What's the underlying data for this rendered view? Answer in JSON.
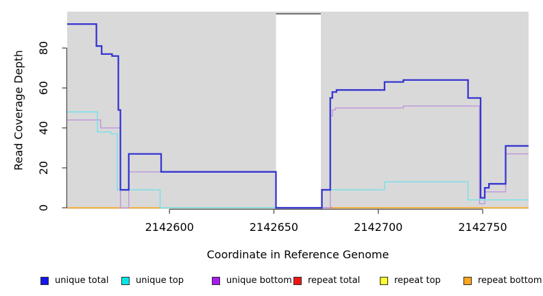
{
  "chart_data": {
    "type": "line",
    "variant": "step-coverage",
    "title": "",
    "xlabel": "Coordinate in Reference Genome",
    "ylabel": "Read Coverage Depth",
    "xlim": [
      2142551,
      2142772
    ],
    "ylim": [
      0,
      97
    ],
    "x_ticks": [
      2142600,
      2142650,
      2142700,
      2142750
    ],
    "y_ticks": [
      0,
      20,
      40,
      60,
      80
    ],
    "grid": false,
    "legend_position": "bottom",
    "panel_background": "#D9D9D9",
    "axis_color": "#4D4D4D",
    "no_data_gap_x": [
      2142651,
      2142672.5
    ],
    "series": [
      {
        "name": "unique total",
        "legend_color": "#1515EF",
        "line_color": "#3535D0",
        "line_width": 2.3,
        "steps": [
          [
            2142551,
            92
          ],
          [
            2142565,
            81
          ],
          [
            2142567.5,
            77
          ],
          [
            2142572.5,
            76
          ],
          [
            2142575.5,
            49
          ],
          [
            2142576.5,
            9
          ],
          [
            2142580.5,
            27
          ],
          [
            2142596,
            18
          ],
          [
            2142651,
            0
          ],
          [
            2142673,
            9
          ],
          [
            2142677,
            55
          ],
          [
            2142678,
            58
          ],
          [
            2142680,
            59
          ],
          [
            2142703,
            63
          ],
          [
            2142712,
            64
          ],
          [
            2142743,
            55
          ],
          [
            2142749,
            5
          ],
          [
            2142751,
            10
          ],
          [
            2142753,
            12
          ],
          [
            2142761,
            31
          ],
          [
            2142772,
            31
          ]
        ]
      },
      {
        "name": "unique top",
        "legend_color": "#00E8E8",
        "line_color": "#72E2EC",
        "line_width": 1.4,
        "steps": [
          [
            2142551,
            48
          ],
          [
            2142565.5,
            38
          ],
          [
            2142572,
            37
          ],
          [
            2142575,
            9
          ],
          [
            2142595.5,
            0
          ],
          [
            2142673,
            9
          ],
          [
            2142703,
            13
          ],
          [
            2142743,
            4
          ],
          [
            2142772,
            4
          ]
        ]
      },
      {
        "name": "unique bottom",
        "legend_color": "#AB1BEF",
        "line_color": "#BD95DC",
        "line_width": 1.4,
        "steps": [
          [
            2142551,
            44
          ],
          [
            2142567,
            40
          ],
          [
            2142576.5,
            0
          ],
          [
            2142580.5,
            18
          ],
          [
            2142651,
            0
          ],
          [
            2142677,
            46
          ],
          [
            2142678,
            49
          ],
          [
            2142679.5,
            50
          ],
          [
            2142712,
            51
          ],
          [
            2142748.5,
            2
          ],
          [
            2142751,
            8
          ],
          [
            2142761,
            27
          ],
          [
            2142772,
            27
          ]
        ]
      },
      {
        "name": "repeat total",
        "legend_color": "#EF1515",
        "line_color": "#DC6464",
        "line_width": 1.5,
        "steps": [
          [
            2142551,
            0
          ],
          [
            2142772,
            0
          ]
        ]
      },
      {
        "name": "repeat top",
        "legend_color": "#FFFF2E",
        "line_color": "#EEEE44",
        "line_width": 1.4,
        "steps": [
          [
            2142551,
            0
          ],
          [
            2142772,
            0
          ]
        ]
      },
      {
        "name": "repeat bottom",
        "legend_color": "#FFA51E",
        "line_color": "#FFA520",
        "line_width": 1.7,
        "steps": [
          [
            2142551,
            0
          ],
          [
            2142772,
            0
          ]
        ]
      }
    ],
    "baseline_overlap_segments": [
      {
        "color": "#8FD08F",
        "from": 2142596,
        "to": 2142651,
        "width": 1.4
      },
      {
        "color": "#DC6464",
        "from": 2142672.5,
        "to": 2142678,
        "width": 1.5
      }
    ]
  }
}
